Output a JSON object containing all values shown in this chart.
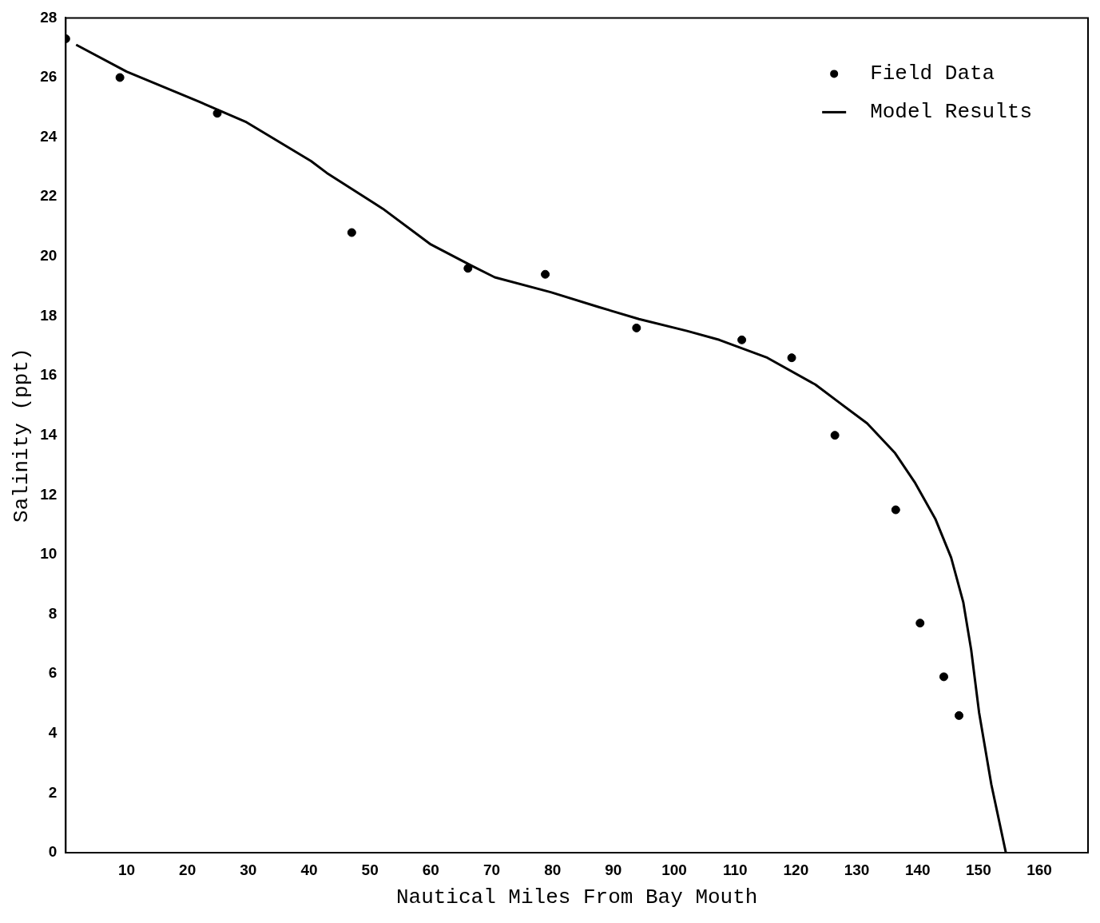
{
  "chart_data": {
    "type": "scatter",
    "xlabel": "Nautical Miles From Bay Mouth",
    "ylabel": "Salinity (ppt)",
    "xlim": [
      0,
      168
    ],
    "ylim": [
      0,
      28
    ],
    "xticks": [
      10,
      20,
      30,
      40,
      50,
      60,
      70,
      80,
      90,
      100,
      110,
      120,
      130,
      140,
      150,
      160
    ],
    "yticks": [
      0,
      2,
      4,
      6,
      8,
      10,
      12,
      14,
      16,
      18,
      20,
      22,
      24,
      26,
      28
    ],
    "grid": false,
    "legend": "top right",
    "series": [
      {
        "name": "Field Data",
        "marker": "circle",
        "color": "#000000",
        "x": [
          0,
          8.9,
          24.9,
          47,
          66.1,
          78.8,
          93.8,
          111.1,
          119.3,
          126.4,
          136.4,
          140.4,
          144.3,
          146.8
        ],
        "values": [
          27.3,
          26,
          24.8,
          20.8,
          19.6,
          19.4,
          17.6,
          17.2,
          16.6,
          14,
          11.5,
          7.7,
          5.9,
          4.6
        ]
      },
      {
        "name": "Model Results",
        "type": "line",
        "marker": "none",
        "line_style": "solid",
        "color": "#000000",
        "x": [
          1.7,
          10,
          21.8,
          29.7,
          40.3,
          42.9,
          52.1,
          60,
          66.6,
          70.5,
          79.7,
          87.6,
          94.2,
          102.1,
          107.4,
          115.3,
          123.2,
          127.1,
          131.7,
          136.3,
          139.6,
          142.9,
          145.5,
          147.5,
          148.8,
          150.1,
          152.1,
          154.5
        ],
        "values": [
          27.1,
          26.2,
          25.2,
          24.5,
          23.2,
          22.8,
          21.6,
          20.4,
          19.7,
          19.3,
          18.8,
          18.3,
          17.9,
          17.5,
          17.2,
          16.6,
          15.7,
          15.1,
          14.4,
          13.4,
          12.4,
          11.2,
          9.9,
          8.4,
          6.8,
          4.7,
          2.3,
          0
        ]
      }
    ]
  }
}
